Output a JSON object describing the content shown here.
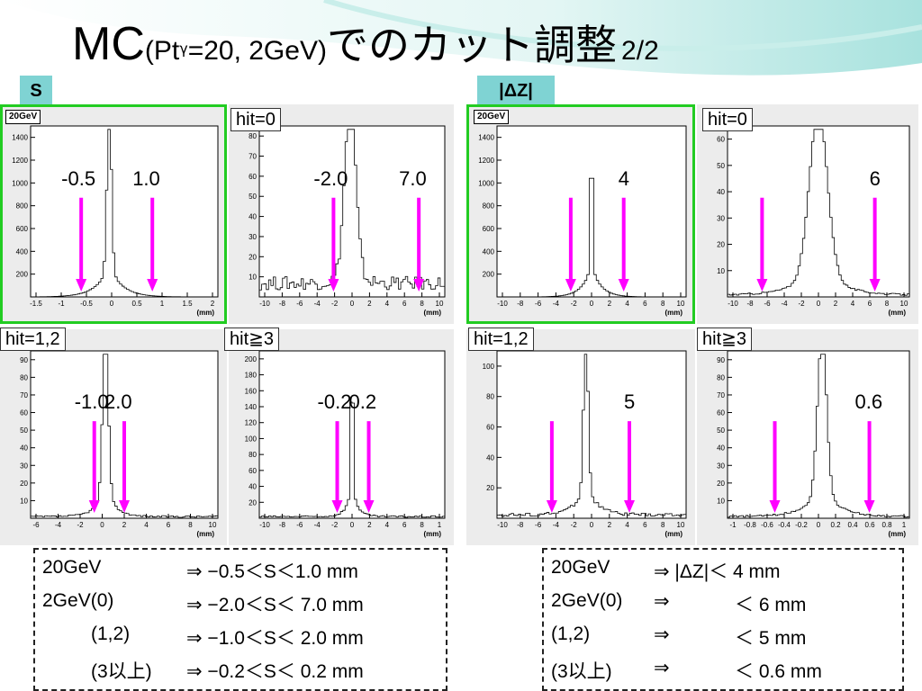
{
  "slide": {
    "title_main": "MC",
    "title_paren_pre": "(Pt",
    "title_sup": "γ",
    "title_paren_post": "=20, 2GeV)",
    "title_jp": "でのカット調整",
    "title_page": "2/2"
  },
  "tags": {
    "left": "S",
    "right": "|ΔZ|"
  },
  "colors": {
    "arrow": "#ff00ff",
    "selection": "#22cc22",
    "tag": "#7fd3d3"
  },
  "panels": [
    {
      "id": "s-20gev",
      "label": "20GeV",
      "unit": "(mm)",
      "xticks": [
        "-1.5",
        "-1",
        "-0.5",
        "0",
        "0.5",
        "1",
        "1.5",
        "2"
      ],
      "yticks": [
        "200",
        "400",
        "600",
        "800",
        "1000",
        "1200",
        "1400"
      ],
      "cut_labels": [
        "-0.5",
        "1.0"
      ]
    },
    {
      "id": "s-hit0",
      "label": "hit=0",
      "unit": "(mm)",
      "xticks": [
        "-10",
        "-8",
        "-6",
        "-4",
        "-2",
        "0",
        "2",
        "4",
        "6",
        "8",
        "10"
      ],
      "yticks": [
        "10",
        "20",
        "30",
        "40",
        "50",
        "60",
        "70",
        "80"
      ],
      "cut_labels": [
        "-2.0",
        "7.0"
      ]
    },
    {
      "id": "s-hit12",
      "label": "hit=1,2",
      "unit": "(mm)",
      "xticks": [
        "-6",
        "-4",
        "-2",
        "0",
        "2",
        "4",
        "6",
        "8",
        "10"
      ],
      "yticks": [
        "10",
        "20",
        "30",
        "40",
        "50",
        "60",
        "70",
        "80",
        "90"
      ],
      "cut_labels": [
        "-1.0",
        "2.0"
      ]
    },
    {
      "id": "s-hit3",
      "label": "hit≧3",
      "unit": "(mm)",
      "xticks": [
        "-10",
        "-8",
        "-6",
        "-4",
        "-2",
        "0",
        "2",
        "4",
        "6",
        "8",
        "1"
      ],
      "yticks": [
        "20",
        "40",
        "60",
        "80",
        "100",
        "120",
        "140",
        "160",
        "180",
        "200"
      ],
      "cut_labels": [
        "-0.2",
        "0.2"
      ]
    },
    {
      "id": "z-20gev",
      "label": "20GeV",
      "unit": "(mm)",
      "xticks": [
        "-10",
        "-8",
        "-6",
        "-4",
        "-2",
        "0",
        "2",
        "4",
        "6",
        "8",
        "10"
      ],
      "yticks": [
        "200",
        "400",
        "600",
        "800",
        "1000",
        "1200",
        "1400"
      ],
      "cut_labels": [
        "4"
      ]
    },
    {
      "id": "z-hit0",
      "label": "hit=0",
      "unit": "(mm)",
      "xticks": [
        "-10",
        "-8",
        "-6",
        "-4",
        "-2",
        "0",
        "2",
        "4",
        "6",
        "8",
        "10"
      ],
      "yticks": [
        "10",
        "20",
        "30",
        "40",
        "50",
        "60"
      ],
      "cut_labels": [
        "6"
      ]
    },
    {
      "id": "z-hit12",
      "label": "hit=1,2",
      "unit": "(mm)",
      "xticks": [
        "-10",
        "-8",
        "-6",
        "-4",
        "-2",
        "0",
        "2",
        "4",
        "6",
        "8",
        "10"
      ],
      "yticks": [
        "20",
        "40",
        "60",
        "80",
        "100"
      ],
      "cut_labels": [
        "5"
      ]
    },
    {
      "id": "z-hit3",
      "label": "hit≧3",
      "unit": "(mm)",
      "xticks": [
        "-1",
        "-0.8",
        "-0.6",
        "-0.4",
        "-0.2",
        "0",
        "0.2",
        "0.4",
        "0.6",
        "0.8",
        "1"
      ],
      "yticks": [
        "10",
        "20",
        "30",
        "40",
        "50",
        "60",
        "70",
        "80",
        "90"
      ],
      "cut_labels": [
        "0.6"
      ]
    }
  ],
  "summary_left": [
    {
      "a": "20GeV",
      "b": "⇒ −0.5＜S＜1.0 mm"
    },
    {
      "a": "2GeV(0)",
      "b": "⇒ −2.0＜S＜ 7.0 mm"
    },
    {
      "a": "(1,2)",
      "b": "⇒ −1.0＜S＜ 2.0 mm"
    },
    {
      "a": "(3以上)",
      "b": "⇒ −0.2＜S＜ 0.2 mm"
    }
  ],
  "summary_right": [
    {
      "a": "20GeV",
      "b": "⇒ |ΔZ|＜ 4 mm"
    },
    {
      "a": "2GeV(0)",
      "b": "⇒",
      "c": "＜ 6 mm"
    },
    {
      "a": "(1,2)",
      "b": "⇒",
      "c": "＜ 5 mm"
    },
    {
      "a": "(3以上)",
      "b": "⇒",
      "c": "＜ 0.6 mm"
    }
  ]
}
